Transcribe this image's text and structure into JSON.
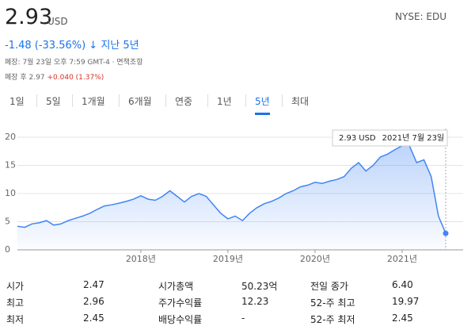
{
  "header": {
    "price": "2.93",
    "currency": "USD",
    "exchange": "NYSE: EDU",
    "change": "-1.48 (-33.56%)",
    "period": "지난 5년",
    "close_note": "폐장: 7월 23일 오후 7:59 GMT-4 · 면책조항",
    "after_hours_label": "폐장 후 2.97",
    "after_hours_change": "+0.040 (1.37%)"
  },
  "tabs": {
    "items": [
      "1일",
      "5일",
      "1개월",
      "6개월",
      "연중",
      "1년",
      "5년",
      "최대"
    ],
    "active": 6
  },
  "chart_data": {
    "type": "line",
    "color": "#4285f4",
    "fill": true,
    "grid": true,
    "tooltip_date": "2021년 7월 23일",
    "categories": [
      null,
      null,
      null,
      null,
      null,
      null,
      null,
      null,
      null,
      null,
      null,
      null,
      null,
      null,
      null,
      null,
      null,
      "2018년",
      null,
      null,
      null,
      null,
      null,
      null,
      null,
      null,
      null,
      null,
      null,
      "2019년",
      null,
      null,
      null,
      null,
      null,
      null,
      null,
      null,
      null,
      null,
      null,
      "2020년",
      null,
      null,
      null,
      null,
      null,
      null,
      null,
      null,
      null,
      null,
      null,
      "2021년",
      null,
      null,
      null,
      null,
      null,
      null
    ],
    "values": [
      4.2,
      4.0,
      4.6,
      4.8,
      5.2,
      4.4,
      4.6,
      5.2,
      5.6,
      6.0,
      6.5,
      7.2,
      7.8,
      8.0,
      8.3,
      8.6,
      9.0,
      9.6,
      9.0,
      8.8,
      9.5,
      10.5,
      9.5,
      8.5,
      9.5,
      10.0,
      9.5,
      8.0,
      6.5,
      5.5,
      6.0,
      5.2,
      6.5,
      7.5,
      8.2,
      8.6,
      9.2,
      10.0,
      10.5,
      11.2,
      11.5,
      12.0,
      11.8,
      12.2,
      12.5,
      13.0,
      14.5,
      15.5,
      14.0,
      15.0,
      16.5,
      17.0,
      17.8,
      18.5,
      18.5,
      15.5,
      16.0,
      13.0,
      6.0,
      2.93
    ],
    "ylim": [
      0,
      20
    ],
    "yticks": [
      0,
      5,
      10,
      15,
      20
    ]
  },
  "stats": {
    "rows": [
      [
        [
          "시가",
          "2.47"
        ],
        [
          "시가총액",
          "50.23억"
        ],
        [
          "전일 종가",
          "6.40"
        ]
      ],
      [
        [
          "최고",
          "2.96"
        ],
        [
          "주가수익률",
          "12.23"
        ],
        [
          "52-주 최고",
          "19.97"
        ]
      ],
      [
        [
          "최저",
          "2.45"
        ],
        [
          "배당수익률",
          "-"
        ],
        [
          "52-주 최저",
          "2.45"
        ]
      ]
    ]
  }
}
